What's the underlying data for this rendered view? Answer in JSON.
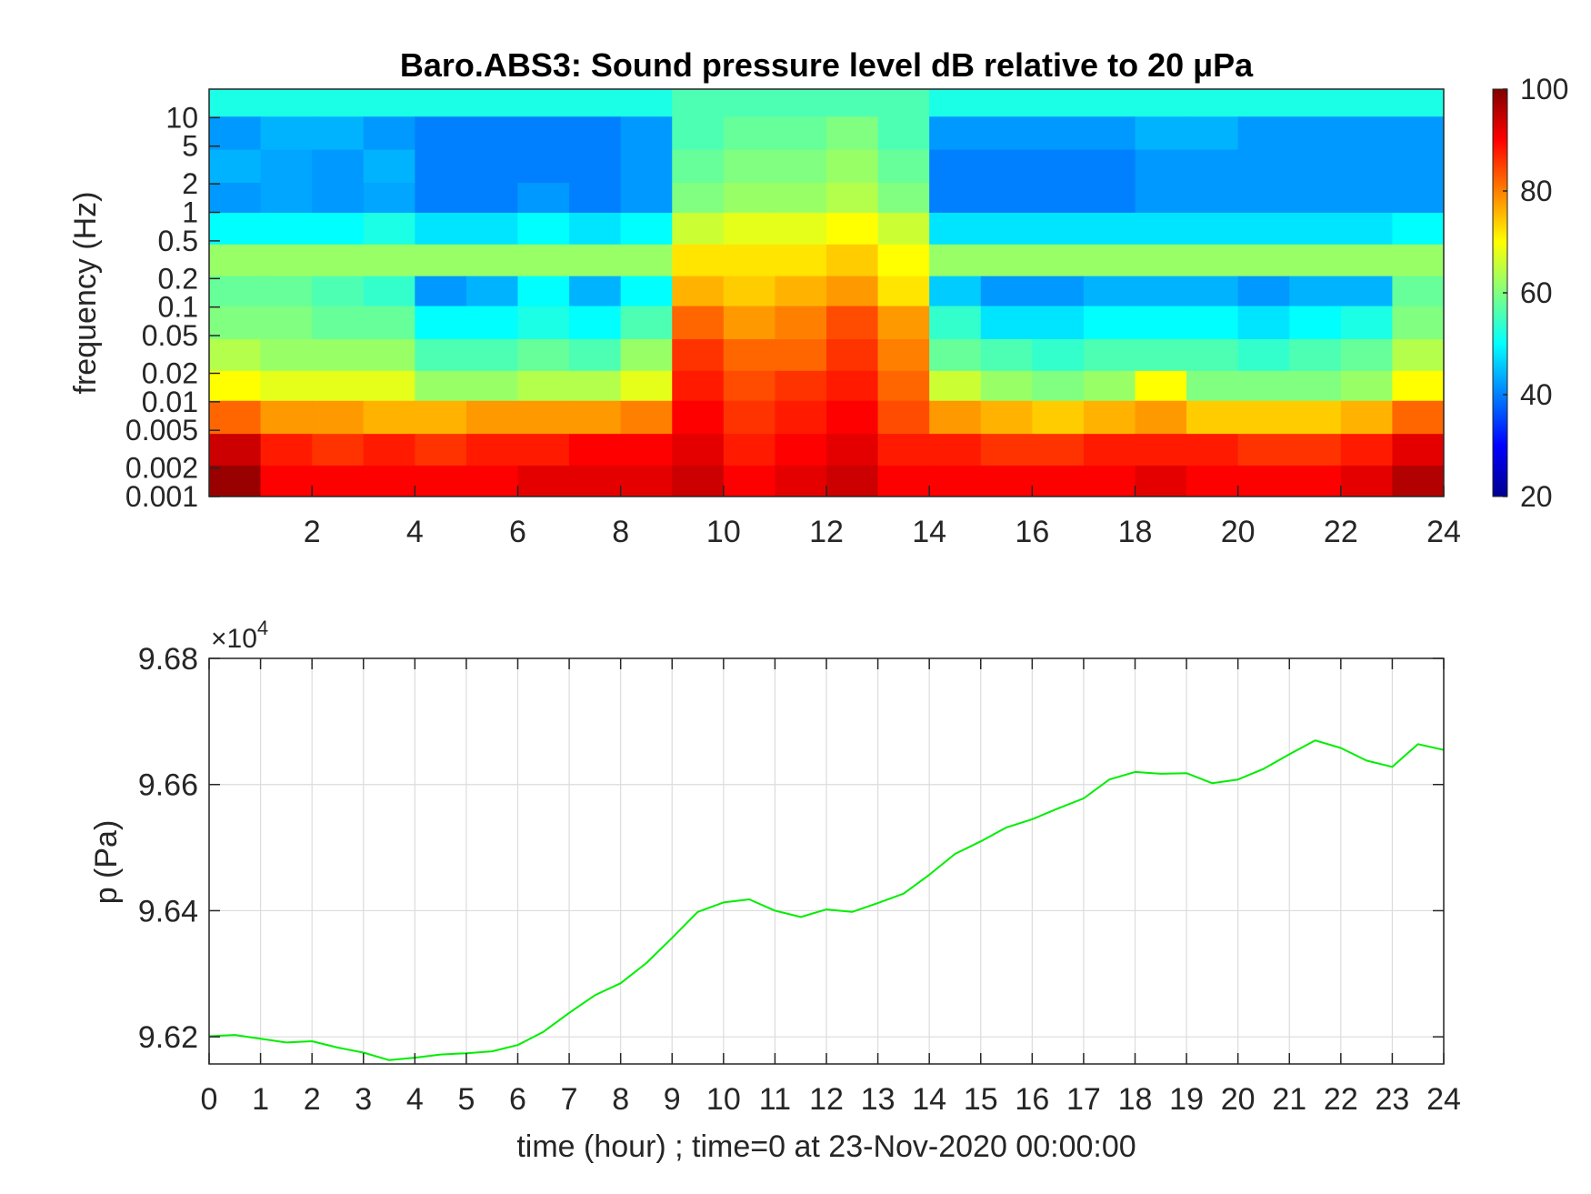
{
  "chart_data": [
    {
      "type": "heatmap",
      "title": "Baro.ABS3: Sound pressure level dB relative to 20 μPa",
      "xlabel": "",
      "ylabel": "frequency (Hz)",
      "xlim": [
        0,
        24
      ],
      "ylim": [
        0.001,
        20
      ],
      "y_scale": "log",
      "x_ticks": [
        2,
        4,
        6,
        8,
        10,
        12,
        14,
        16,
        18,
        20,
        22,
        24
      ],
      "y_ticks": [
        10,
        5,
        2,
        1,
        0.5,
        0.2,
        0.1,
        0.05,
        0.02,
        0.01,
        0.005,
        0.002,
        0.001
      ],
      "y_tick_labels": [
        "10",
        "5",
        "2",
        "1",
        "0.5",
        "0.2",
        "0.1",
        "0.05",
        "0.02",
        "0.01",
        "0.005",
        "0.002",
        "0.001"
      ],
      "colorbar": {
        "min": 20,
        "max": 100,
        "ticks": [
          100,
          80,
          60,
          40,
          20
        ],
        "colormap": "jet"
      },
      "grid": false,
      "time_bins_hours": [
        0.5,
        1.5,
        2.5,
        3.5,
        4.5,
        5.5,
        6.5,
        7.5,
        8.5,
        9.5,
        10.5,
        11.5,
        12.5,
        13.5,
        14.5,
        15.5,
        16.5,
        17.5,
        18.5,
        19.5,
        20.5,
        21.5,
        22.5,
        23.5
      ],
      "freq_bins_hz": [
        15,
        7,
        3,
        1.4,
        0.7,
        0.3,
        0.15,
        0.07,
        0.03,
        0.015,
        0.007,
        0.003,
        0.0015
      ],
      "level_db": [
        [
          52,
          52,
          52,
          52,
          52,
          52,
          52,
          52,
          52,
          56,
          56,
          56,
          56,
          56,
          52,
          52,
          52,
          52,
          52,
          52,
          52,
          52,
          52,
          52
        ],
        [
          42,
          44,
          44,
          42,
          40,
          40,
          40,
          40,
          42,
          56,
          58,
          58,
          60,
          56,
          42,
          42,
          42,
          42,
          44,
          44,
          42,
          42,
          42,
          42
        ],
        [
          44,
          43,
          42,
          44,
          40,
          40,
          40,
          40,
          42,
          58,
          60,
          60,
          62,
          58,
          40,
          40,
          40,
          40,
          42,
          42,
          42,
          42,
          42,
          42
        ],
        [
          42,
          43,
          42,
          43,
          40,
          40,
          42,
          40,
          42,
          60,
          62,
          62,
          64,
          60,
          40,
          40,
          40,
          40,
          42,
          42,
          42,
          42,
          42,
          42
        ],
        [
          50,
          50,
          50,
          52,
          48,
          48,
          50,
          48,
          50,
          66,
          68,
          68,
          70,
          66,
          48,
          48,
          48,
          48,
          48,
          48,
          48,
          48,
          48,
          50
        ],
        [
          62,
          62,
          62,
          62,
          62,
          62,
          62,
          62,
          62,
          72,
          72,
          72,
          74,
          70,
          62,
          62,
          62,
          62,
          62,
          62,
          62,
          62,
          62,
          62
        ],
        [
          58,
          58,
          56,
          54,
          42,
          44,
          50,
          44,
          50,
          76,
          74,
          76,
          78,
          72,
          46,
          42,
          42,
          44,
          44,
          44,
          42,
          44,
          44,
          58
        ],
        [
          60,
          60,
          58,
          58,
          50,
          50,
          52,
          50,
          56,
          82,
          78,
          80,
          84,
          78,
          54,
          48,
          48,
          50,
          50,
          50,
          48,
          50,
          52,
          60
        ],
        [
          64,
          62,
          62,
          62,
          56,
          56,
          58,
          56,
          62,
          86,
          82,
          82,
          86,
          80,
          58,
          56,
          54,
          56,
          56,
          56,
          54,
          56,
          58,
          64
        ],
        [
          70,
          68,
          68,
          68,
          62,
          62,
          64,
          64,
          68,
          88,
          84,
          86,
          88,
          82,
          66,
          62,
          60,
          62,
          70,
          60,
          60,
          60,
          62,
          70
        ],
        [
          82,
          78,
          78,
          76,
          76,
          78,
          78,
          78,
          80,
          90,
          86,
          88,
          90,
          84,
          78,
          76,
          74,
          76,
          78,
          74,
          74,
          74,
          76,
          82
        ],
        [
          94,
          88,
          86,
          88,
          86,
          88,
          88,
          90,
          90,
          92,
          88,
          90,
          92,
          88,
          88,
          86,
          86,
          88,
          88,
          88,
          86,
          86,
          88,
          92
        ],
        [
          98,
          90,
          90,
          90,
          90,
          90,
          92,
          92,
          92,
          94,
          90,
          92,
          94,
          90,
          90,
          90,
          90,
          90,
          92,
          90,
          90,
          90,
          92,
          96
        ]
      ]
    },
    {
      "type": "line",
      "title": "",
      "xlabel": "time (hour) ; time=0 at 23-Nov-2020 00:00:00",
      "ylabel": "p (Pa)",
      "xlim": [
        0,
        24
      ],
      "ylim": [
        96157,
        96800
      ],
      "x_ticks": [
        0,
        1,
        2,
        3,
        4,
        5,
        6,
        7,
        8,
        9,
        10,
        11,
        12,
        13,
        14,
        15,
        16,
        17,
        18,
        19,
        20,
        21,
        22,
        23,
        24
      ],
      "y_ticks": [
        96200,
        96400,
        96600,
        96800
      ],
      "y_tick_labels": [
        "9.62",
        "9.64",
        "9.66",
        "9.68"
      ],
      "y_exponent_label": "×10",
      "y_exponent_power": "4",
      "grid": true,
      "line_color": "#00ee00",
      "x": [
        0,
        0.5,
        1,
        1.5,
        2,
        2.5,
        3,
        3.5,
        4,
        4.5,
        5,
        5.5,
        6,
        6.5,
        7,
        7.5,
        8,
        8.5,
        9,
        9.5,
        10,
        10.5,
        11,
        11.5,
        12,
        12.5,
        13,
        13.5,
        14,
        14.5,
        15,
        15.5,
        16,
        16.5,
        17,
        17.5,
        18,
        18.5,
        19,
        19.5,
        20,
        20.5,
        21,
        21.5,
        22,
        22.5,
        23,
        23.5,
        24
      ],
      "y": [
        96201,
        96203,
        96197,
        96191,
        96193,
        96183,
        96175,
        96163,
        96167,
        96172,
        96174,
        96177,
        96187,
        96208,
        96238,
        96266,
        96285,
        96317,
        96357,
        96398,
        96413,
        96418,
        96400,
        96390,
        96402,
        96398,
        96412,
        96427,
        96457,
        96490,
        96510,
        96532,
        96545,
        96562,
        96578,
        96608,
        96620,
        96617,
        96618,
        96602,
        96608,
        96625,
        96648,
        96670,
        96658,
        96638,
        96628,
        96664,
        96655
      ]
    }
  ]
}
